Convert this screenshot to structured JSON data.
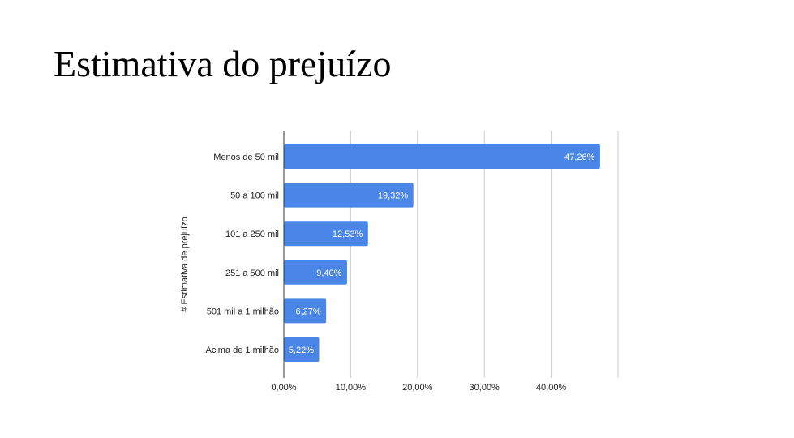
{
  "slide": {
    "title": "Estimativa do prejuízo"
  },
  "colors": {
    "bar": "#4a86e8",
    "grid": "#cccccc",
    "axis": "#333333",
    "text": "#222222",
    "label": "#ffffff"
  },
  "chart_data": {
    "type": "bar",
    "orientation": "horizontal",
    "title": "",
    "xlabel": "",
    "ylabel": "# Estimativa de prejuízo",
    "categories": [
      "Menos de 50 mil",
      "50 a 100 mil",
      "101 a 250 mil",
      "251 a 500 mil",
      "501 mil a 1 milhão",
      "Acima de 1 milhão"
    ],
    "values": [
      47.26,
      19.32,
      12.53,
      9.4,
      6.27,
      5.22
    ],
    "data_labels": [
      "47,26%",
      "19,32%",
      "12,53%",
      "9,40%",
      "6,27%",
      "5,22%"
    ],
    "xlim": [
      0,
      50
    ],
    "x_ticks": [
      0,
      10,
      20,
      30,
      40
    ],
    "x_tick_labels": [
      "0,00%",
      "10,00%",
      "20,00%",
      "30,00%",
      "40,00%"
    ],
    "grid": true,
    "legend": "none"
  }
}
